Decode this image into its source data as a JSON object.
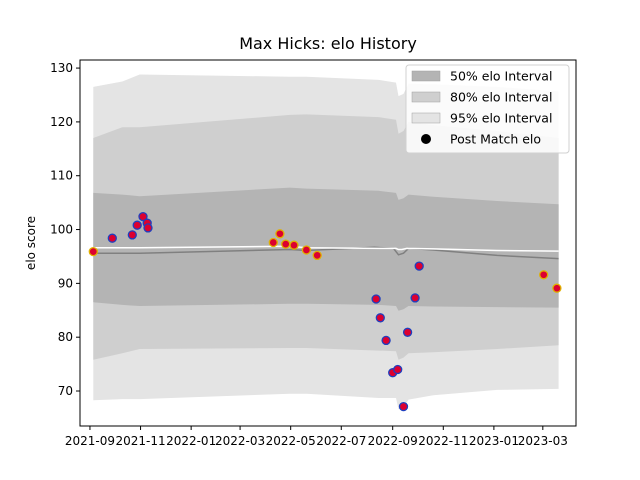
{
  "chart_data": {
    "type": "line",
    "title": "Max Hicks: elo History",
    "xlabel": "",
    "ylabel": "elo score",
    "xlim": [
      "2021-08-20",
      "2023-04-10"
    ],
    "ylim": [
      63.5,
      131.5
    ],
    "x_ticks": [
      "2021-09",
      "2021-11",
      "2022-01",
      "2022-03",
      "2022-05",
      "2022-07",
      "2022-09",
      "2022-11",
      "2023-01",
      "2023-03"
    ],
    "y_ticks": [
      70,
      80,
      90,
      100,
      110,
      120,
      130
    ],
    "grid": false,
    "legend_position": "top-right",
    "legend": {
      "band50": "50% elo Interval",
      "band80": "80% elo Interval",
      "band95": "95% elo Interval",
      "points": "Post Match elo"
    },
    "colors": {
      "band50": "#b4b4b4",
      "band80": "#cfcfcf",
      "band95": "#e4e4e4",
      "median_line": "#808080",
      "mean_line": "#ffffff",
      "point_fill": "#dc0030",
      "point_edge_blue": "#1f3fbf",
      "point_edge_gold": "#e0b000"
    },
    "mean_line": {
      "x": [
        "2021-09-05",
        "2021-10-31",
        "2022-04-30",
        "2022-05-20",
        "2022-08-15",
        "2022-09-05",
        "2022-09-08",
        "2022-09-12",
        "2022-09-18",
        "2022-10-20",
        "2023-01-05",
        "2023-03-20"
      ],
      "y": [
        96.6,
        96.6,
        96.9,
        96.6,
        96.5,
        96.5,
        96.3,
        96.3,
        96.5,
        96.4,
        96.1,
        96.0
      ]
    },
    "median_line": {
      "x": [
        "2021-09-05",
        "2021-10-31",
        "2022-04-30",
        "2022-05-20",
        "2022-08-10",
        "2022-09-02",
        "2022-09-08",
        "2022-09-14",
        "2022-09-20",
        "2022-10-20",
        "2023-01-05",
        "2023-03-20"
      ],
      "y": [
        95.6,
        95.6,
        96.3,
        96.1,
        96.7,
        96.5,
        95.3,
        95.6,
        96.5,
        96.2,
        95.2,
        94.6
      ]
    },
    "bands": {
      "x": [
        "2021-09-05",
        "2021-10-10",
        "2021-10-31",
        "2022-04-30",
        "2022-05-20",
        "2022-08-15",
        "2022-09-05",
        "2022-09-08",
        "2022-09-14",
        "2022-09-20",
        "2022-10-20",
        "2023-01-05",
        "2023-03-20"
      ],
      "p50_low": [
        86.5,
        86.0,
        85.8,
        86.2,
        86.2,
        86.0,
        85.8,
        84.9,
        85.2,
        85.8,
        85.7,
        85.6,
        85.5
      ],
      "p50_high": [
        106.8,
        106.5,
        106.2,
        107.8,
        107.6,
        107.2,
        106.8,
        105.5,
        105.8,
        106.5,
        106.1,
        105.3,
        104.7
      ],
      "p80_low": [
        75.8,
        77.0,
        77.8,
        78.0,
        78.0,
        77.5,
        77.4,
        75.8,
        76.2,
        77.0,
        77.2,
        77.8,
        78.5
      ],
      "p80_high": [
        117.0,
        119.0,
        119.0,
        121.3,
        121.4,
        120.9,
        120.4,
        117.8,
        118.3,
        120.0,
        119.4,
        118.3,
        117.0
      ],
      "p95_low": [
        68.3,
        68.5,
        68.5,
        69.5,
        69.5,
        68.7,
        68.7,
        66.6,
        67.0,
        68.4,
        69.2,
        70.2,
        70.4
      ],
      "p95_high": [
        126.5,
        127.5,
        128.8,
        128.4,
        128.4,
        127.8,
        127.3,
        124.8,
        125.2,
        127.1,
        127.0,
        126.5,
        125.7
      ]
    },
    "points": {
      "x": [
        "2021-09-05",
        "2021-09-28",
        "2021-10-22",
        "2021-10-28",
        "2021-11-04",
        "2021-11-09",
        "2021-11-10",
        "2022-04-10",
        "2022-04-18",
        "2022-04-25",
        "2022-05-05",
        "2022-05-20",
        "2022-06-02",
        "2022-08-12",
        "2022-08-17",
        "2022-08-24",
        "2022-09-01",
        "2022-09-07",
        "2022-09-14",
        "2022-09-19",
        "2022-09-28",
        "2022-10-03",
        "2023-03-02",
        "2023-03-18"
      ],
      "y": [
        95.9,
        98.4,
        99.0,
        100.8,
        102.4,
        101.2,
        100.3,
        97.6,
        99.2,
        97.3,
        97.1,
        96.2,
        95.2,
        87.1,
        83.6,
        79.4,
        73.4,
        74.0,
        67.1,
        80.9,
        87.3,
        93.2,
        91.6,
        89.1
      ],
      "edge": [
        "gold",
        "blue",
        "blue",
        "blue",
        "blue",
        "blue",
        "blue",
        "gold",
        "gold",
        "gold",
        "gold",
        "gold",
        "gold",
        "blue",
        "blue",
        "blue",
        "blue",
        "blue",
        "blue",
        "blue",
        "blue",
        "blue",
        "gold",
        "gold"
      ]
    }
  }
}
